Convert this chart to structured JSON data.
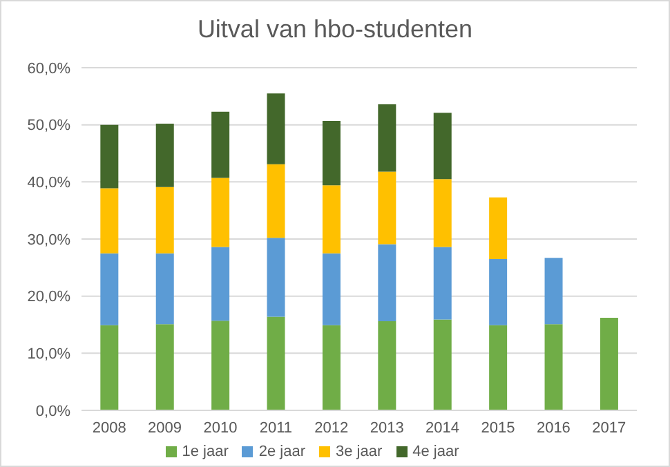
{
  "chart_data": {
    "type": "bar",
    "title": "Uitval van hbo-studenten",
    "stacked": true,
    "categories": [
      "2008",
      "2009",
      "2010",
      "2011",
      "2012",
      "2013",
      "2014",
      "2015",
      "2016",
      "2017"
    ],
    "series": [
      {
        "name": "1e jaar",
        "color": "#70ad47",
        "values": [
          14.9,
          15.1,
          15.7,
          16.4,
          14.9,
          15.6,
          15.9,
          14.9,
          15.1,
          16.2
        ]
      },
      {
        "name": "2e jaar",
        "color": "#5b9bd5",
        "values": [
          12.6,
          12.4,
          12.9,
          13.8,
          12.6,
          13.5,
          12.7,
          11.6,
          11.6,
          null
        ]
      },
      {
        "name": "3e jaar",
        "color": "#ffc000",
        "values": [
          11.4,
          11.6,
          12.1,
          12.9,
          11.9,
          12.7,
          11.9,
          10.8,
          null,
          null
        ]
      },
      {
        "name": "4e jaar",
        "color": "#43682b",
        "values": [
          11.1,
          11.1,
          11.6,
          12.4,
          11.3,
          11.8,
          11.6,
          null,
          null,
          null
        ]
      }
    ],
    "ylim": [
      0,
      60
    ],
    "yticks": [
      {
        "value": 0,
        "label": "0,0%"
      },
      {
        "value": 10,
        "label": "10,0%"
      },
      {
        "value": 20,
        "label": "20,0%"
      },
      {
        "value": 30,
        "label": "30,0%"
      },
      {
        "value": 40,
        "label": "40,0%"
      },
      {
        "value": 50,
        "label": "50,0%"
      },
      {
        "value": 60,
        "label": "60,0%"
      }
    ],
    "grid": "y",
    "legend": "bottom"
  }
}
